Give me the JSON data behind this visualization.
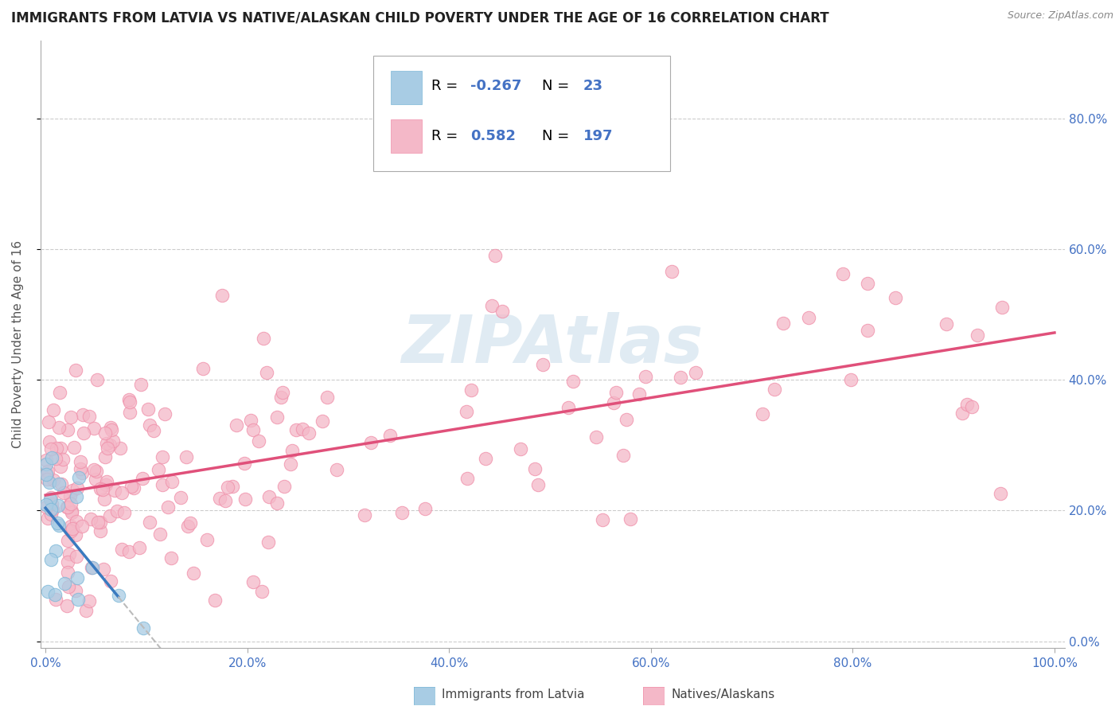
{
  "title": "IMMIGRANTS FROM LATVIA VS NATIVE/ALASKAN CHILD POVERTY UNDER THE AGE OF 16 CORRELATION CHART",
  "source": "Source: ZipAtlas.com",
  "ylabel": "Child Poverty Under the Age of 16",
  "color_blue": "#a8cce4",
  "color_pink": "#f4b8c8",
  "color_blue_edge": "#7db8d8",
  "color_pink_edge": "#f090aa",
  "color_blue_line": "#3a7abf",
  "color_pink_line": "#e0507a",
  "color_dashed": "#bbbbbb",
  "color_grid": "#cccccc",
  "color_text_blue": "#4472c4",
  "watermark_color": "#d8e8f0",
  "background_color": "#ffffff",
  "title_fontsize": 12,
  "axis_label_fontsize": 11,
  "tick_fontsize": 11,
  "legend_fontsize": 13
}
